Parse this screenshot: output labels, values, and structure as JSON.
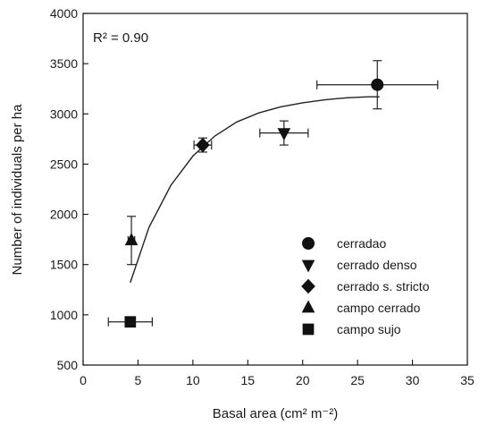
{
  "chart_data": {
    "type": "scatter",
    "xlabel": "Basal area (cm² m⁻²)",
    "ylabel": "Number of individuals per ha",
    "xlim": [
      0,
      35
    ],
    "ylim": [
      500,
      4000
    ],
    "xticks": [
      0,
      5,
      10,
      15,
      20,
      25,
      30,
      35
    ],
    "yticks": [
      500,
      1000,
      1500,
      2000,
      2500,
      3000,
      3500,
      4000
    ],
    "grid": false,
    "legend_position": "bottom-right",
    "annotation": {
      "text": "R² = 0.90",
      "position": "top-left"
    },
    "series": [
      {
        "name": "cerradao",
        "marker": "circle",
        "x": 26.8,
        "y": 3290,
        "x_err": [
          5.5,
          5.5
        ],
        "y_err": [
          240,
          240
        ]
      },
      {
        "name": "cerrado denso",
        "marker": "triangle-down",
        "x": 18.3,
        "y": 2810,
        "x_err": [
          2.2,
          2.2
        ],
        "y_err": [
          120,
          120
        ]
      },
      {
        "name": "cerrado s. stricto",
        "marker": "diamond",
        "x": 10.9,
        "y": 2690,
        "x_err": [
          0.8,
          0.8
        ],
        "y_err": [
          70,
          70
        ]
      },
      {
        "name": "campo cerrado",
        "marker": "triangle-up",
        "x": 4.4,
        "y": 1740,
        "x_err": [
          0.3,
          0.3
        ],
        "y_err": [
          240,
          240
        ]
      },
      {
        "name": "campo sujo",
        "marker": "square",
        "x": 4.3,
        "y": 930,
        "x_err": [
          2.0,
          2.0
        ],
        "y_err": [
          40,
          40
        ]
      }
    ],
    "fit_curve": {
      "model": "exponential-rise",
      "x": [
        4.3,
        6,
        8,
        10,
        12,
        14,
        16,
        18,
        20,
        22,
        24,
        26,
        27
      ],
      "y": [
        1320,
        1870,
        2290,
        2580,
        2780,
        2920,
        3010,
        3070,
        3110,
        3140,
        3160,
        3170,
        3170
      ]
    },
    "color": "#111111"
  }
}
